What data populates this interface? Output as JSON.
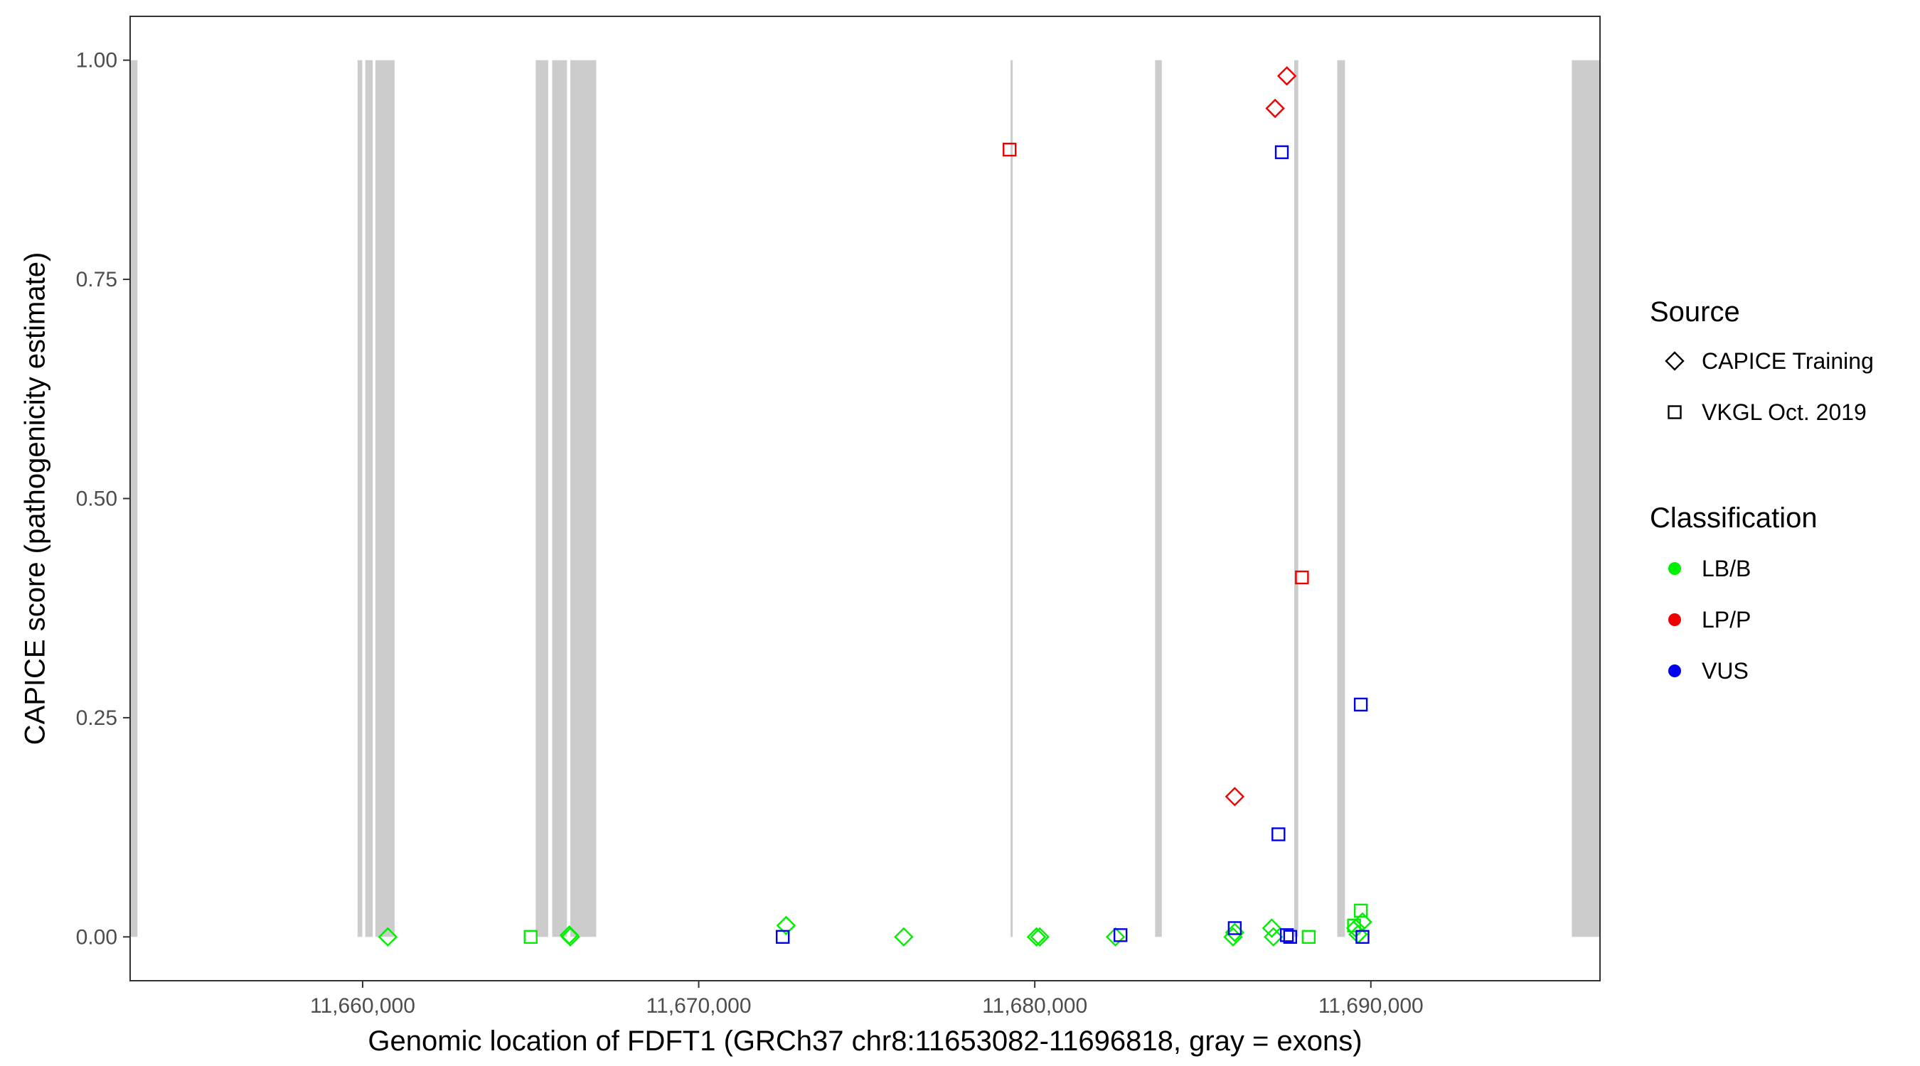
{
  "chart_data": {
    "type": "scatter",
    "xlabel": "Genomic location of FDFT1 (GRCh37 chr8:11653082-11696818, gray = exons)",
    "ylabel": "CAPICE score (pathogenicity estimate)",
    "xlim": [
      11653082,
      11696818
    ],
    "ylim": [
      -0.05,
      1.05
    ],
    "x_ticks": [
      11660000,
      11670000,
      11680000,
      11690000
    ],
    "x_tick_labels": [
      "11,660,000",
      "11,670,000",
      "11,680,000",
      "11,690,000"
    ],
    "y_ticks": [
      0,
      0.25,
      0.5,
      0.75,
      1.0
    ],
    "y_tick_labels": [
      "0.00",
      "0.25",
      "0.50",
      "0.75",
      "1.00"
    ],
    "grid": false,
    "exon_color": "#cccccc",
    "exons": [
      [
        11653082,
        11653300
      ],
      [
        11659850,
        11659990
      ],
      [
        11660080,
        11660300
      ],
      [
        11660380,
        11660950
      ],
      [
        11665150,
        11665520
      ],
      [
        11665640,
        11666080
      ],
      [
        11666180,
        11666950
      ],
      [
        11679280,
        11679330
      ],
      [
        11683580,
        11683780
      ],
      [
        11687720,
        11687840
      ],
      [
        11689000,
        11689230
      ],
      [
        11695980,
        11696818
      ]
    ],
    "legend": {
      "position": "right",
      "source": {
        "title": "Source",
        "items": [
          {
            "label": "CAPICE Training",
            "shape": "diamond"
          },
          {
            "label": "VKGL Oct. 2019",
            "shape": "square"
          }
        ]
      },
      "classification": {
        "title": "Classification",
        "items": [
          {
            "label": "LB/B",
            "color": "#00ee00"
          },
          {
            "label": "LP/P",
            "color": "#ee0000"
          },
          {
            "label": "VUS",
            "color": "#0000ee"
          }
        ]
      }
    },
    "series": [
      {
        "source": "CAPICE Training",
        "classification": "LB/B",
        "points": [
          [
            11660750,
            0.0
          ],
          [
            11666150,
            0.002
          ],
          [
            11666180,
            0.0
          ],
          [
            11672600,
            0.013
          ],
          [
            11676100,
            0.0
          ],
          [
            11680050,
            0.0
          ],
          [
            11680150,
            0.0
          ],
          [
            11682400,
            0.0
          ],
          [
            11685900,
            0.0
          ],
          [
            11685950,
            0.005
          ],
          [
            11687050,
            0.01
          ],
          [
            11687100,
            0.0
          ],
          [
            11689550,
            0.01
          ],
          [
            11689620,
            0.003
          ],
          [
            11689750,
            0.017
          ]
        ]
      },
      {
        "source": "CAPICE Training",
        "classification": "LP/P",
        "points": [
          [
            11685950,
            0.16
          ],
          [
            11687150,
            0.945
          ],
          [
            11687500,
            0.982
          ]
        ]
      },
      {
        "source": "VKGL Oct. 2019",
        "classification": "LB/B",
        "points": [
          [
            11665000,
            0.0
          ],
          [
            11688150,
            0.0
          ],
          [
            11689500,
            0.013
          ],
          [
            11689700,
            0.03
          ]
        ]
      },
      {
        "source": "VKGL Oct. 2019",
        "classification": "LP/P",
        "points": [
          [
            11679250,
            0.898
          ],
          [
            11687950,
            0.41
          ]
        ]
      },
      {
        "source": "VKGL Oct. 2019",
        "classification": "VUS",
        "points": [
          [
            11672500,
            0.0
          ],
          [
            11682550,
            0.002
          ],
          [
            11685950,
            0.01
          ],
          [
            11687250,
            0.117
          ],
          [
            11687350,
            0.895
          ],
          [
            11687500,
            0.002
          ],
          [
            11687600,
            0.0
          ],
          [
            11689700,
            0.265
          ],
          [
            11689750,
            0.0
          ]
        ]
      }
    ]
  }
}
